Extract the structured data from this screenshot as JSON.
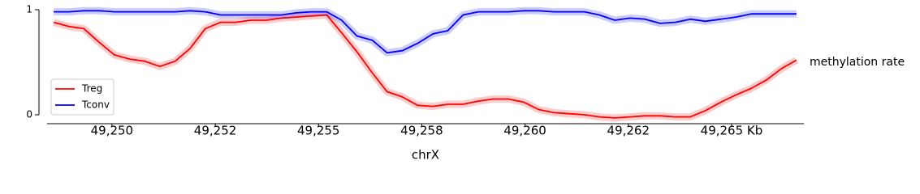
{
  "chart_data": {
    "type": "line",
    "xlabel": "chrX",
    "ylabel": "methylation rate",
    "x": [
      49248.59,
      49248.96,
      49249.32,
      49249.69,
      49250.06,
      49250.43,
      49250.79,
      49251.16,
      49251.53,
      49251.89,
      49252.26,
      49252.63,
      49252.99,
      49253.36,
      49253.73,
      49254.1,
      49254.46,
      49254.83,
      49255.2,
      49255.56,
      49255.93,
      49256.3,
      49256.66,
      49257.03,
      49257.4,
      49257.77,
      49258.13,
      49258.5,
      49258.87,
      49259.23,
      49259.6,
      49259.97,
      49260.33,
      49260.7,
      49261.07,
      49261.44,
      49261.8,
      49262.17,
      49262.54,
      49262.9,
      49263.27,
      49263.64,
      49264.0,
      49264.37,
      49264.74,
      49265.11,
      49265.47,
      49265.84,
      49266.21,
      49266.57
    ],
    "series": [
      {
        "name": "Treg",
        "color": "#ff0000",
        "values": [
          0.88,
          0.84,
          0.82,
          0.69,
          0.57,
          0.53,
          0.51,
          0.46,
          0.51,
          0.63,
          0.82,
          0.88,
          0.88,
          0.9,
          0.9,
          0.92,
          0.93,
          0.94,
          0.95,
          0.78,
          0.6,
          0.4,
          0.22,
          0.17,
          0.09,
          0.08,
          0.1,
          0.1,
          0.13,
          0.15,
          0.15,
          0.12,
          0.05,
          0.02,
          0.01,
          0.0,
          -0.02,
          -0.03,
          -0.02,
          -0.01,
          -0.01,
          -0.02,
          -0.02,
          0.04,
          0.12,
          0.19,
          0.25,
          0.33,
          0.44,
          0.52
        ]
      },
      {
        "name": "Tconv",
        "color": "#0000ff",
        "values": [
          0.98,
          0.98,
          0.99,
          0.99,
          0.98,
          0.98,
          0.98,
          0.98,
          0.98,
          0.99,
          0.98,
          0.95,
          0.95,
          0.95,
          0.95,
          0.95,
          0.97,
          0.98,
          0.98,
          0.9,
          0.75,
          0.71,
          0.59,
          0.61,
          0.68,
          0.77,
          0.8,
          0.95,
          0.98,
          0.98,
          0.98,
          0.99,
          0.99,
          0.98,
          0.98,
          0.98,
          0.95,
          0.9,
          0.92,
          0.91,
          0.87,
          0.88,
          0.91,
          0.89,
          0.91,
          0.93,
          0.96,
          0.96,
          0.96,
          0.96
        ]
      }
    ],
    "xlim": [
      49248.43,
      49266.75
    ],
    "ylim": [
      0,
      1
    ],
    "xticks": [
      {
        "value": 49250,
        "label": "49,250"
      },
      {
        "value": 49252.5,
        "label": "49,252"
      },
      {
        "value": 49255,
        "label": "49,255"
      },
      {
        "value": 49257.5,
        "label": "49,258"
      },
      {
        "value": 49260,
        "label": "49,260"
      },
      {
        "value": 49262.5,
        "label": "49,262"
      },
      {
        "value": 49265,
        "label": "49,265 Kb"
      }
    ],
    "yticks": [
      0,
      1
    ],
    "legend": "lower left"
  }
}
